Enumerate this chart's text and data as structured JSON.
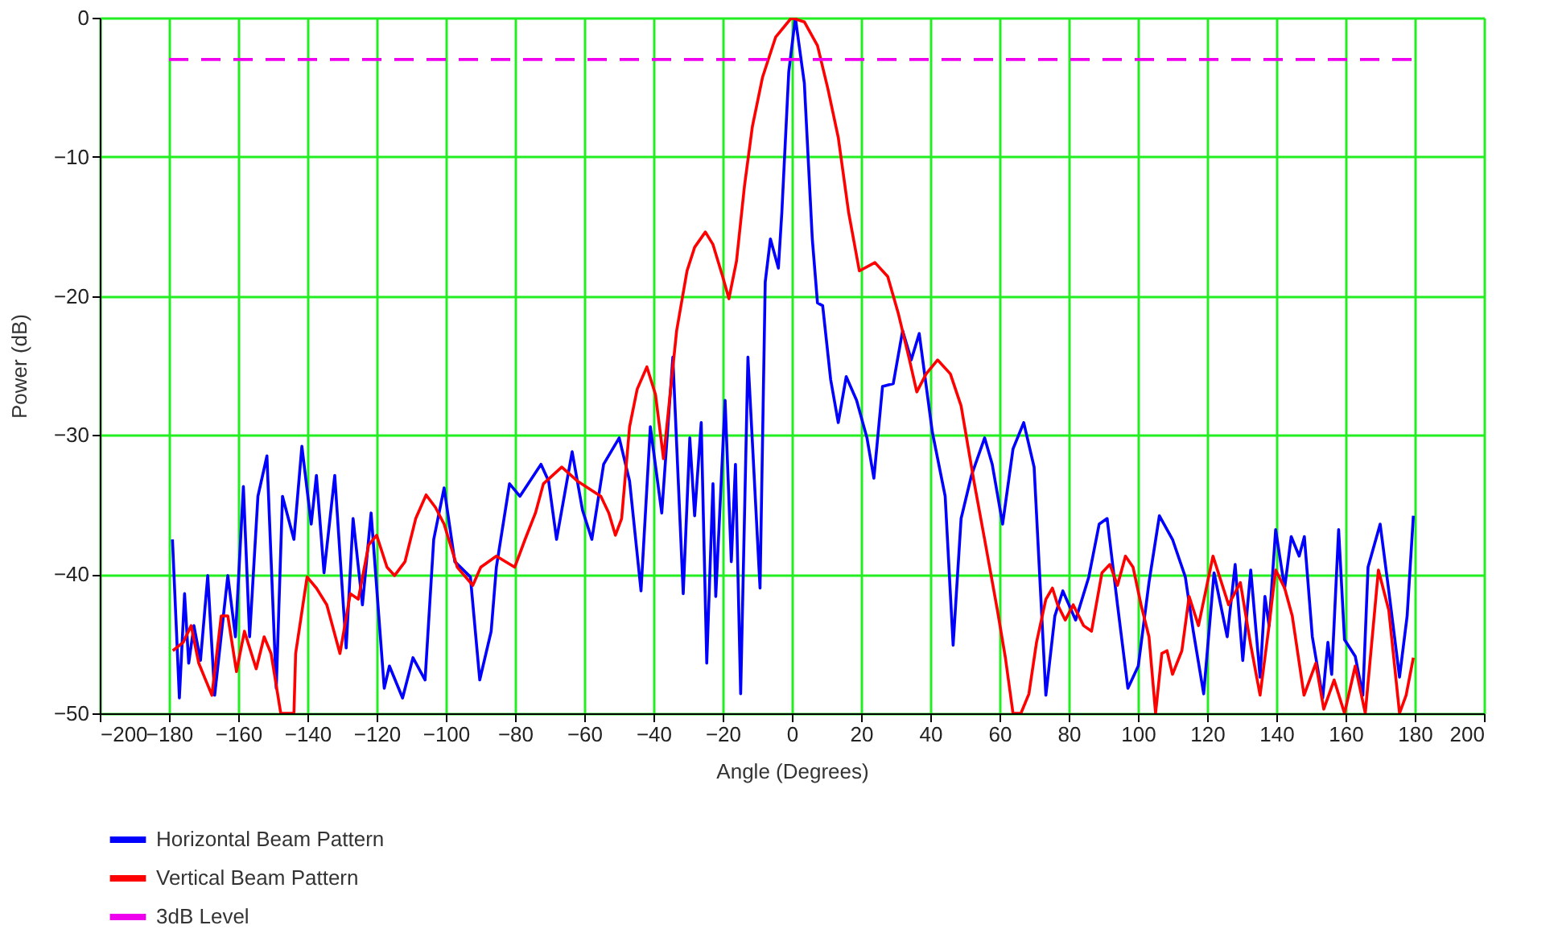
{
  "chart_data": {
    "type": "line",
    "xlabel": "Angle (Degrees)",
    "ylabel": "Power (dB)",
    "xlim": [
      -200,
      200
    ],
    "ylim": [
      -50,
      0
    ],
    "xticks": [
      -200,
      -180,
      -160,
      -140,
      -120,
      -100,
      -80,
      -60,
      -40,
      -20,
      0,
      20,
      40,
      60,
      80,
      100,
      120,
      140,
      160,
      180,
      200
    ],
    "yticks": [
      0,
      -10,
      -20,
      -30,
      -40,
      -50
    ],
    "grid": true,
    "legend": "bottom left",
    "marker": "none",
    "series": [
      {
        "name": "Horizontal Beam Pattern",
        "color": "#0000ff",
        "line_style": "solid",
        "x": [
          -179,
          -177,
          -175.5,
          -174.3,
          -172.8,
          -170.9,
          -168.8,
          -166.8,
          -163,
          -160.8,
          -158.5,
          -156.7,
          -154.3,
          -151.7,
          -149,
          -147.2,
          -143.9,
          -141.6,
          -138.9,
          -137.4,
          -135.2,
          -132.1,
          -128.8,
          -126.8,
          -124.1,
          -121.6,
          -117.8,
          -116.3,
          -112.5,
          -109.5,
          -106,
          -103.5,
          -100.5,
          -97.4,
          -92.9,
          -90.2,
          -86.9,
          -85.4,
          -81.6,
          -78.6,
          -72.5,
          -70.3,
          -68,
          -63.5,
          -60.5,
          -57.8,
          -54.4,
          -49.9,
          -46.9,
          -43.6,
          -40.9,
          -37.6,
          -34.4,
          -31.4,
          -29.5,
          -28.1,
          -26.2,
          -24.6,
          -22.8,
          -22,
          -19.3,
          -17.5,
          -16.3,
          -14.8,
          -12.7,
          -9.2,
          -7.7,
          -6.2,
          -3.9,
          -2.9,
          -0.9,
          1,
          3.6,
          5.9,
          7.4,
          8.9,
          11.2,
          13.4,
          15.7,
          18.7,
          21.7,
          23.7,
          26.2,
          29.3,
          32,
          34.5,
          36.8,
          40.6,
          44.3,
          46.6,
          48.9,
          51.9,
          55.7,
          57.9,
          60.9,
          63.9,
          67,
          70,
          73.4,
          76,
          78.3,
          82,
          85.8,
          88.8,
          91.1,
          94.1,
          97.1,
          100.1,
          103.2,
          106.2,
          110,
          113.7,
          116,
          119,
          122,
          125.8,
          128.1,
          130.3,
          132.6,
          135.3,
          136.7,
          137.9,
          139.8,
          142.4,
          144.3,
          146.6,
          148.1,
          150.4,
          153.4,
          154.9,
          156,
          158,
          159.7,
          162.8,
          165,
          166.5,
          170,
          172.5,
          175.6,
          177.8,
          179.6
        ],
        "values": [
          -37.5,
          -48.9,
          -41.4,
          -46.4,
          -43.7,
          -46.2,
          -40.1,
          -48.7,
          -40.1,
          -44.5,
          -33.7,
          -44.5,
          -34.4,
          -31.5,
          -48.2,
          -34.4,
          -37.5,
          -30.8,
          -36.4,
          -32.9,
          -39.9,
          -32.9,
          -45.3,
          -36,
          -42.2,
          -35.6,
          -48.2,
          -46.6,
          -48.9,
          -46,
          -47.6,
          -37.5,
          -33.8,
          -39.1,
          -40.2,
          -47.6,
          -44.1,
          -39.5,
          -33.5,
          -34.4,
          -32.1,
          -33.3,
          -37.5,
          -31.2,
          -35.4,
          -37.5,
          -32.1,
          -30.2,
          -33.3,
          -41.2,
          -29.4,
          -35.6,
          -24.4,
          -41.4,
          -30.2,
          -35.8,
          -29.1,
          -46.4,
          -33.5,
          -41.6,
          -27.5,
          -39.1,
          -32.1,
          -48.6,
          -24.4,
          -41,
          -19,
          -15.9,
          -18,
          -14,
          -3.9,
          0,
          -4.7,
          -15.9,
          -20.5,
          -20.7,
          -26,
          -29.1,
          -25.8,
          -27.5,
          -30.2,
          -33.1,
          -26.5,
          -26.3,
          -22.5,
          -24.6,
          -22.7,
          -29.8,
          -34.4,
          -45.1,
          -36,
          -32.9,
          -30.2,
          -32.1,
          -36.4,
          -31,
          -29.1,
          -32.3,
          -48.7,
          -43,
          -41.2,
          -43.3,
          -40.2,
          -36.4,
          -36,
          -42.2,
          -48.2,
          -46.6,
          -40.6,
          -35.8,
          -37.5,
          -40.2,
          -44.1,
          -48.6,
          -39.9,
          -44.5,
          -39.3,
          -46.2,
          -39.7,
          -47.4,
          -41.6,
          -43.7,
          -36.8,
          -41,
          -37.3,
          -38.7,
          -37.3,
          -44.5,
          -48.9,
          -44.9,
          -47.2,
          -36.8,
          -44.7,
          -45.9,
          -48.7,
          -39.5,
          -36.4,
          -41.2,
          -47.4,
          -43,
          -35.8
        ]
      },
      {
        "name": "Vertical Beam Pattern",
        "color": "#ff0000",
        "line_style": "solid",
        "x": [
          -178.9,
          -175.9,
          -173.6,
          -171.4,
          -167.6,
          -164.9,
          -163,
          -160.5,
          -158.2,
          -154.8,
          -152.5,
          -150.5,
          -147.7,
          -143.9,
          -143.4,
          -140.1,
          -137.4,
          -134.4,
          -130.6,
          -127.6,
          -125.3,
          -122.3,
          -120,
          -117,
          -114.8,
          -111.8,
          -108.7,
          -105.7,
          -103,
          -100.5,
          -96.7,
          -92.2,
          -89.9,
          -85.4,
          -80.1,
          -77.1,
          -74.1,
          -71.8,
          -66.5,
          -62,
          -55.2,
          -52.9,
          -51,
          -49.2,
          -46.9,
          -44.7,
          -41.9,
          -39.4,
          -37.1,
          -33.3,
          -30.3,
          -28.1,
          -25,
          -22.8,
          -20,
          -18.2,
          -16,
          -13.7,
          -11.4,
          -8.5,
          -4.7,
          -0.1,
          3.6,
          7.4,
          10.4,
          13.4,
          16.4,
          19.5,
          24,
          27.7,
          30.8,
          33.8,
          36.1,
          38.8,
          42.1,
          45.8,
          48.9,
          52.6,
          55.7,
          59.4,
          61.7,
          63.9,
          66.2,
          68.5,
          70.7,
          73.4,
          75.3,
          76.8,
          79,
          81.3,
          84.3,
          86.6,
          89.6,
          91.9,
          94.1,
          96.4,
          98.6,
          100.9,
          103.2,
          105.1,
          106.9,
          108.4,
          110,
          112.7,
          114.8,
          117.5,
          121.7,
          126.2,
          129.6,
          132.6,
          135.3,
          137.9,
          139.8,
          142.4,
          144.6,
          148,
          151.4,
          153.7,
          156.7,
          159.7,
          162.8,
          165.7,
          169.5,
          172.5,
          175.6,
          177.5,
          179.6
        ],
        "values": [
          -45.5,
          -44.9,
          -43.7,
          -46.4,
          -48.7,
          -43,
          -43,
          -47,
          -44.1,
          -46.8,
          -44.5,
          -45.7,
          -50,
          -50,
          -45.7,
          -40.2,
          -41,
          -42.2,
          -45.7,
          -41.4,
          -41.8,
          -37.9,
          -37.2,
          -39.5,
          -40.1,
          -39.1,
          -36,
          -34.3,
          -35.2,
          -36.4,
          -39.5,
          -40.8,
          -39.5,
          -38.7,
          -39.5,
          -37.5,
          -35.6,
          -33.5,
          -32.3,
          -33.3,
          -34.4,
          -35.6,
          -37.2,
          -36,
          -29.4,
          -26.7,
          -25.1,
          -27.1,
          -31.7,
          -22.5,
          -18.2,
          -16.5,
          -15.4,
          -16.3,
          -18.6,
          -20.2,
          -17.5,
          -12.1,
          -7.8,
          -4.3,
          -1.4,
          0,
          -0.3,
          -2,
          -5.1,
          -8.6,
          -14,
          -18.2,
          -17.6,
          -18.6,
          -21.3,
          -24.4,
          -26.9,
          -25.6,
          -24.6,
          -25.6,
          -27.9,
          -33.3,
          -37.5,
          -42.6,
          -46,
          -50,
          -50,
          -48.6,
          -44.9,
          -41.8,
          -41,
          -42.2,
          -43.3,
          -42.2,
          -43.7,
          -44.1,
          -39.9,
          -39.3,
          -40.8,
          -38.7,
          -39.5,
          -42.2,
          -44.5,
          -50,
          -45.7,
          -45.5,
          -47.2,
          -45.5,
          -41.6,
          -43.7,
          -38.7,
          -42.2,
          -40.6,
          -45.1,
          -48.7,
          -43.7,
          -39.7,
          -41,
          -43,
          -48.7,
          -46.4,
          -49.7,
          -47.6,
          -50,
          -46.6,
          -50,
          -39.7,
          -42.6,
          -50,
          -48.7,
          -46
        ]
      },
      {
        "name": "3dB Level",
        "color": "#ee00ee",
        "line_style": "dashed",
        "x": [
          -180,
          180
        ],
        "values": [
          -3,
          -3
        ]
      }
    ]
  }
}
